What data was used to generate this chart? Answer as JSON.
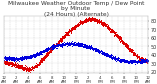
{
  "title": "Milwaukee Weather Outdoor Temp / Dew Point\nby Minute\n(24 Hours) (Alternate)",
  "title_fontsize": 4.2,
  "bg_color": "#ffffff",
  "plot_bg_color": "#ffffff",
  "text_color": "#333333",
  "grid_color": "#aaaaaa",
  "temp_color": "#dd0000",
  "dew_color": "#0000dd",
  "ylim": [
    18,
    85
  ],
  "yticks": [
    20,
    30,
    40,
    50,
    60,
    70,
    80
  ],
  "ylabel_fontsize": 3.5,
  "xlabel_fontsize": 2.8,
  "seed": 42
}
